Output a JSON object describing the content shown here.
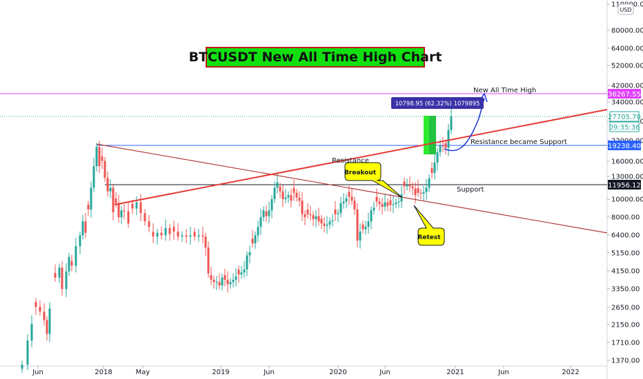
{
  "chart_data": {
    "type": "candlestick",
    "title": "BTCUSDT New All Time High Chart",
    "currency": "USD",
    "y_scale": "log",
    "ylim": [
      1300,
      120000
    ],
    "y_ticks": [
      "110000.00",
      "80000.00",
      "64000.00",
      "52000.00",
      "42000.00",
      "34000.00",
      "27000.00",
      "22000.00",
      "16000.00",
      "13000.00",
      "10000.00",
      "8000.00",
      "6400.00",
      "5150.00",
      "4150.00",
      "3350.00",
      "2650.00",
      "2150.00",
      "1710.00",
      "1370.00"
    ],
    "x_ticks": [
      "Jun",
      "2018",
      "May",
      "2019",
      "Jun",
      "2020",
      "Jun",
      "2021",
      "Jun",
      "2022"
    ],
    "price_labels": [
      {
        "text": "36267.55",
        "color": "#e040fb"
      },
      {
        "text": "27705.70",
        "color": "#26a69a"
      },
      {
        "text": "09:35:36",
        "color": "#26a69a"
      },
      {
        "text": "19238.40",
        "color": "#2962ff"
      },
      {
        "text": "11956.12",
        "color": "#131722"
      }
    ],
    "measure_label": "10798.95 (62.32%) 1079895",
    "annotations": {
      "ath": "New All Time High",
      "resistance_support": "Resistance became Support",
      "resistance": "Resistance",
      "support": "Support",
      "breakout": "Breakout",
      "retest": "Retest"
    },
    "levels": [
      {
        "name": "All Time High",
        "value": 36267.55,
        "color": "#e040fb"
      },
      {
        "name": "Resistance became Support",
        "value": 19238.4,
        "color": "#2962ff"
      },
      {
        "name": "Support",
        "value": 11956.12,
        "color": "#131722"
      }
    ]
  },
  "colors": {
    "up": "#26a69a",
    "down": "#ef5350",
    "trendline": "#e53935",
    "downtrend": "#b23b3b",
    "projection": "#1a36d6",
    "bubble": "#ffff00"
  }
}
